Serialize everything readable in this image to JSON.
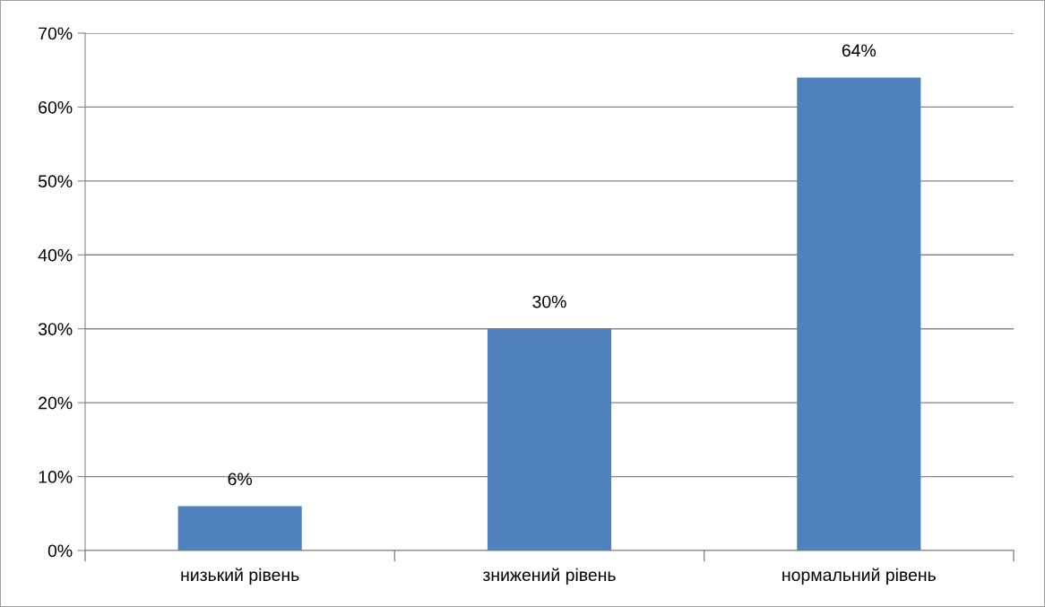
{
  "chart_data": {
    "type": "bar",
    "categories": [
      "низький рівень",
      "знижений рівень",
      "нормальний рівень"
    ],
    "values": [
      6,
      30,
      64
    ],
    "color": "#4f81bd",
    "value_labels": [
      "6%",
      "30%",
      "64%"
    ],
    "ylim": [
      0,
      70
    ],
    "yticks": [
      {
        "value": 0,
        "label": "0%"
      },
      {
        "value": 10,
        "label": "10%"
      },
      {
        "value": 20,
        "label": "20%"
      },
      {
        "value": 30,
        "label": "30%"
      },
      {
        "value": 40,
        "label": "40%"
      },
      {
        "value": 50,
        "label": "50%"
      },
      {
        "value": 60,
        "label": "60%"
      },
      {
        "value": 70,
        "label": "70%"
      }
    ],
    "grid": "y",
    "legend": false
  }
}
